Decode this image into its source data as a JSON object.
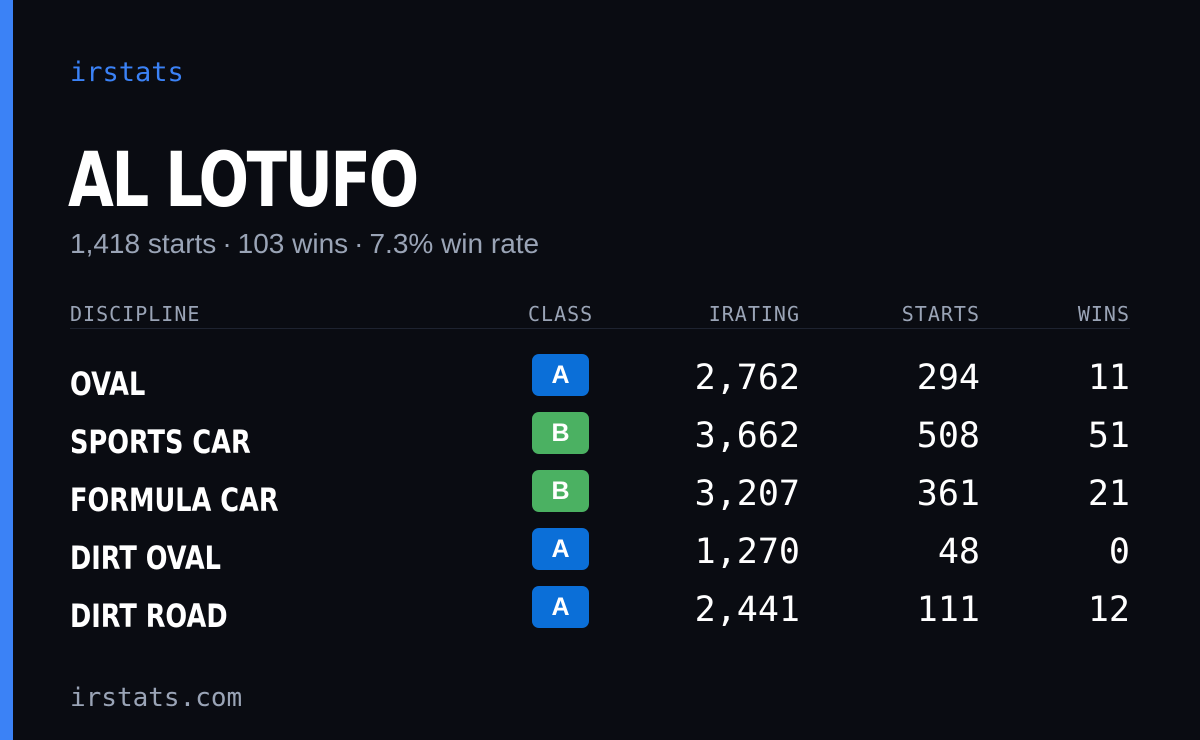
{
  "brand": "irstats",
  "driver": {
    "name": "AL LOTUFO",
    "starts": "1,418 starts",
    "wins": "103 wins",
    "win_rate": "7.3% win rate",
    "separator": "·"
  },
  "table": {
    "headers": {
      "discipline": "DISCIPLINE",
      "class": "CLASS",
      "irating": "IRATING",
      "starts": "STARTS",
      "wins": "WINS"
    },
    "rows": [
      {
        "discipline": "OVAL",
        "class": "A",
        "class_color": "#0b6fd8",
        "irating": "2,762",
        "starts": "294",
        "wins": "11"
      },
      {
        "discipline": "SPORTS CAR",
        "class": "B",
        "class_color": "#4bb162",
        "irating": "3,662",
        "starts": "508",
        "wins": "51"
      },
      {
        "discipline": "FORMULA CAR",
        "class": "B",
        "class_color": "#4bb162",
        "irating": "3,207",
        "starts": "361",
        "wins": "21"
      },
      {
        "discipline": "DIRT OVAL",
        "class": "A",
        "class_color": "#0b6fd8",
        "irating": "1,270",
        "starts": "48",
        "wins": "0"
      },
      {
        "discipline": "DIRT ROAD",
        "class": "A",
        "class_color": "#0b6fd8",
        "irating": "2,441",
        "starts": "111",
        "wins": "12"
      }
    ]
  },
  "footer": "irstats.com",
  "colors": {
    "accent": "#3b82f6",
    "background": "#0a0c12",
    "muted_text": "#9aa4b6",
    "class_a": "#0b6fd8",
    "class_b": "#4bb162"
  }
}
